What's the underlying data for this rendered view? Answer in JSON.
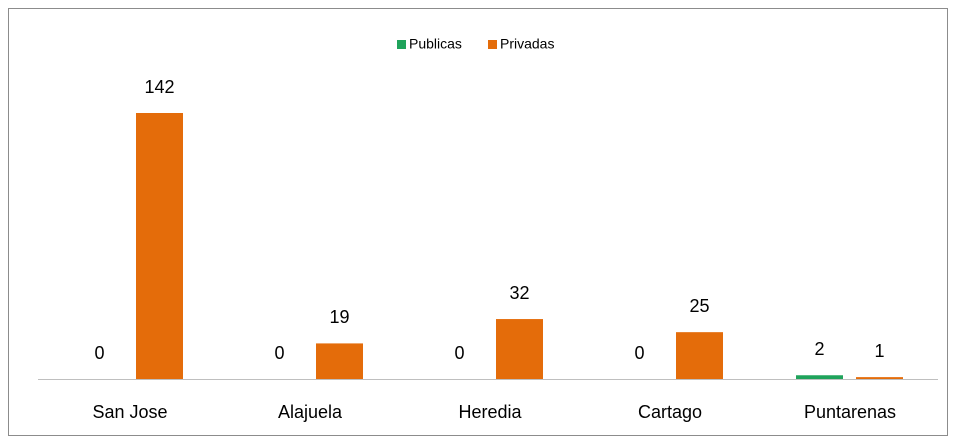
{
  "chart_data": {
    "type": "bar",
    "categories": [
      "San Jose",
      "Alajuela",
      "Heredia",
      "Cartago",
      "Puntarenas"
    ],
    "series": [
      {
        "name": "Publicas",
        "color": "#1fa35b",
        "values": [
          0,
          0,
          0,
          0,
          2
        ]
      },
      {
        "name": "Privadas",
        "color": "#e46c0a",
        "values": [
          142,
          19,
          32,
          25,
          1
        ]
      }
    ],
    "legend": "top"
  }
}
